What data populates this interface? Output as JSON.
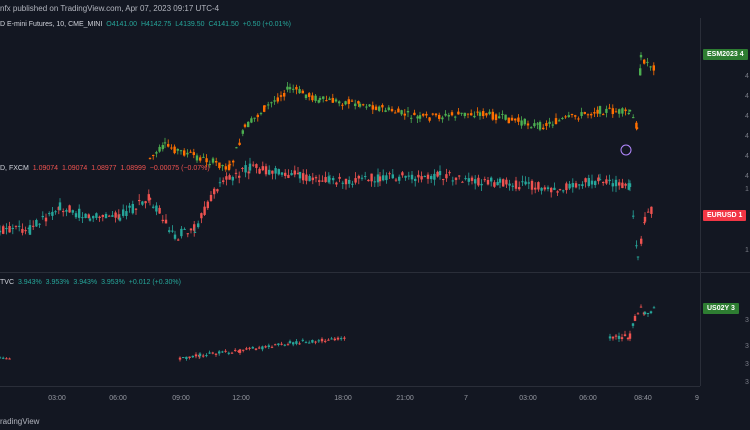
{
  "header": {
    "published": "nfx published on TradingView.com, Apr 07, 2023 09:17 UTC-4"
  },
  "panes": [
    {
      "label": "D E-mini Futures, 10, CME_MINI",
      "open": "O4141.00",
      "high": "H4142.75",
      "low": "L4139.50",
      "close": "C4141.50",
      "change": "+0.50 (+0.01%)",
      "tag": "ESM2023",
      "tag_value": "4",
      "tag_color": "#2e7d32",
      "axis_ticks": [
        "4",
        "4",
        "4",
        "4",
        "4",
        "4"
      ]
    },
    {
      "label": "D, FXCM",
      "open": "1.09074",
      "high": "1.09074",
      "low": "1.08977",
      "close": "1.08999",
      "change": "−0.00075 (−0.07%)",
      "tag": "EURUSD",
      "tag_value": "1",
      "tag_color": "#f23645",
      "axis_ticks": [
        "1",
        "1"
      ]
    },
    {
      "label": "TVC",
      "open": "3.943%",
      "high": "3.953%",
      "low": "3.943%",
      "close": "3.953%",
      "change": "+0.012 (+0.30%)",
      "tag": "US02Y",
      "tag_value": "3",
      "tag_color": "#2e7d32",
      "axis_ticks": [
        "3",
        "3",
        "3",
        "3"
      ]
    }
  ],
  "time_axis": [
    "03:00",
    "06:00",
    "09:00",
    "12:00",
    "18:00",
    "21:00",
    "7",
    "03:00",
    "06:00",
    "08:40",
    "9"
  ],
  "footer": {
    "brand": "radingView"
  },
  "colors": {
    "up": "#26a69a",
    "down": "#ef5350",
    "es_up": "#4caf50",
    "es_down": "#ff6f00",
    "bg": "#131722",
    "grid": "#2a2e39"
  }
}
